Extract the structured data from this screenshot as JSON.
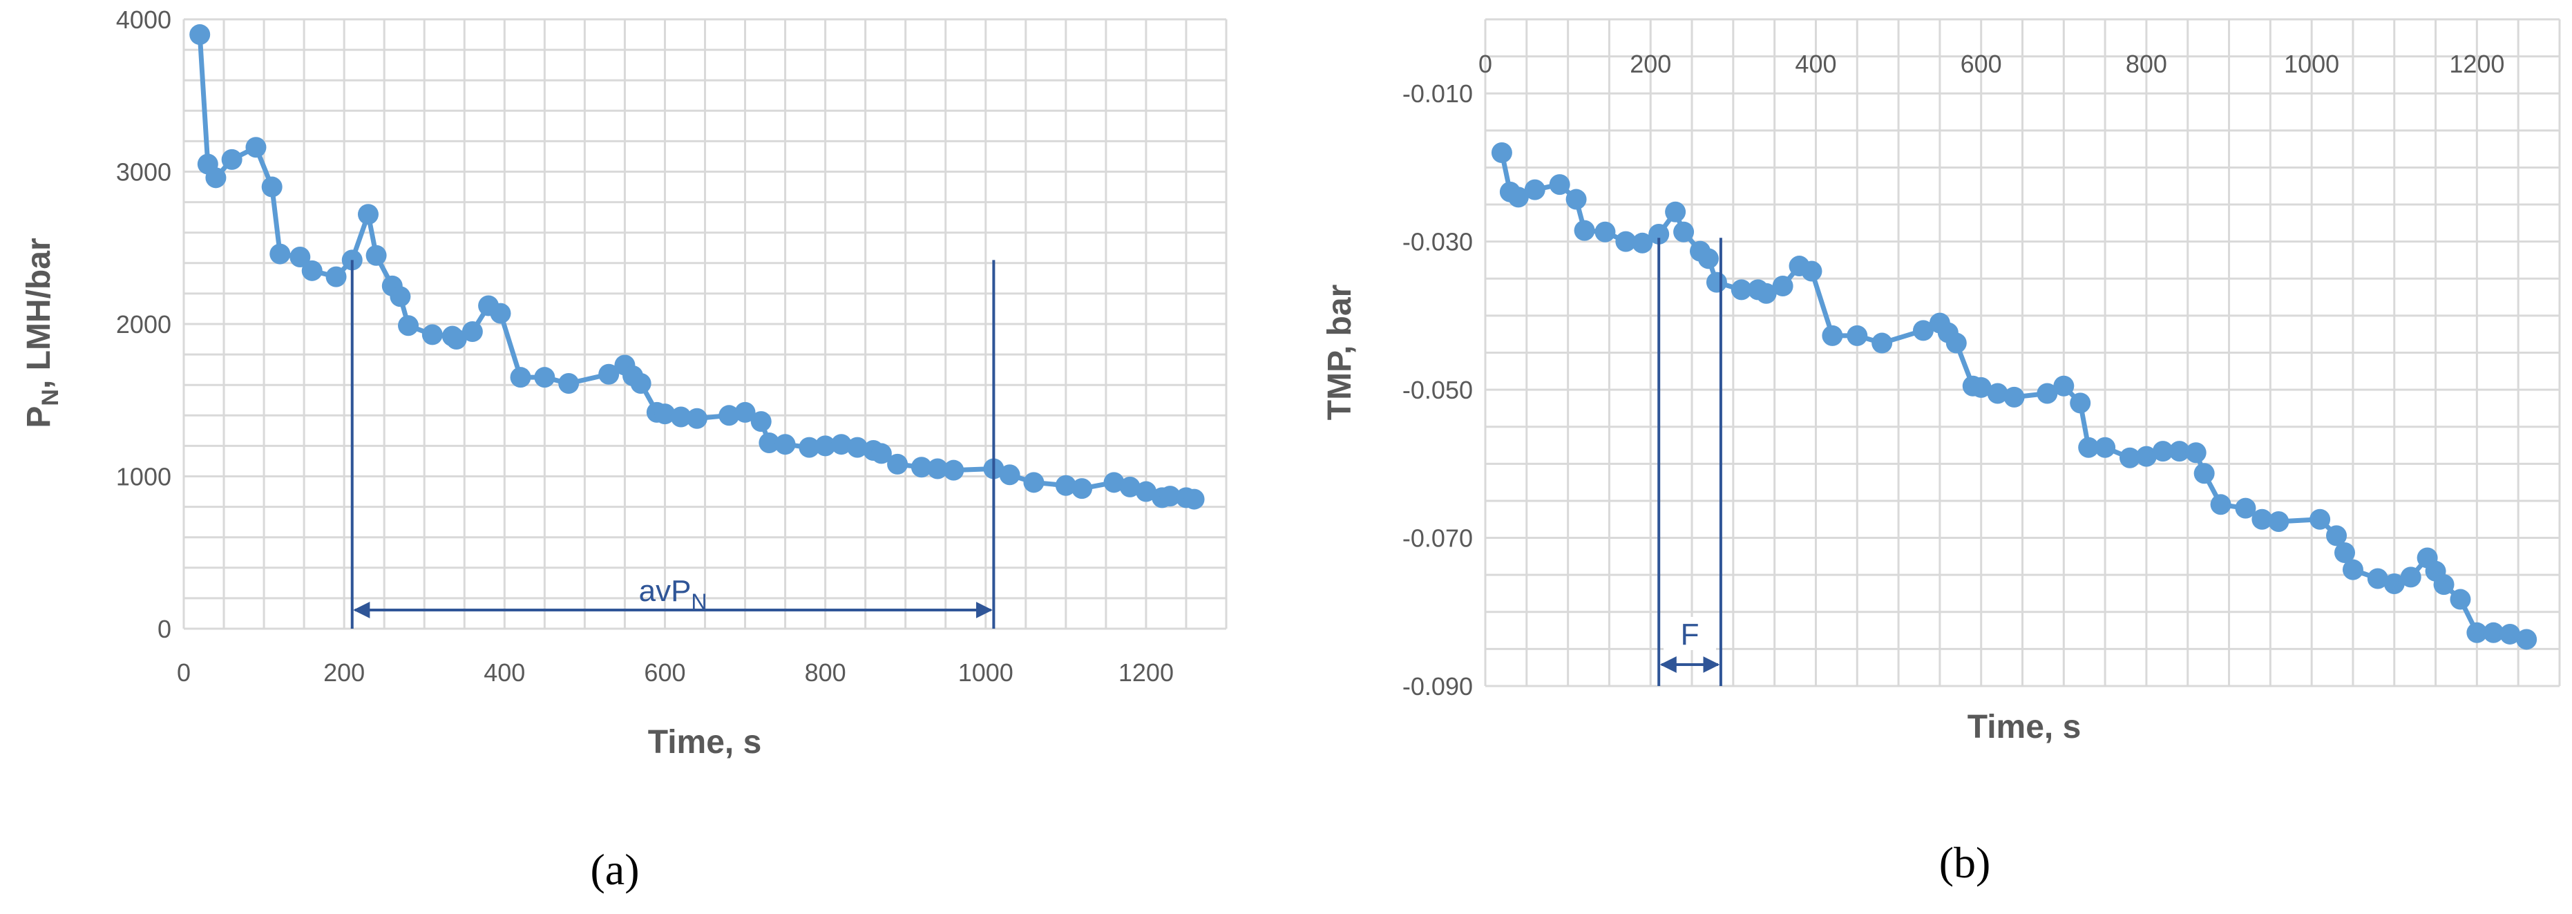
{
  "colors": {
    "series": "#5B9BD5",
    "annotation": "#2F5597",
    "grid": "#D9D9D9",
    "text": "#595959"
  },
  "chart_data": [
    {
      "type": "line",
      "panel_label": "(a)",
      "title": "",
      "xlabel": "Time, s",
      "ylabel": "P",
      "ylabel_sub": "N",
      "ylabel_rest": ", LMH/bar",
      "xlim": [
        0,
        1300
      ],
      "ylim": [
        0,
        4000
      ],
      "xticks": [
        0,
        200,
        400,
        600,
        800,
        1000,
        1200
      ],
      "yticks": [
        0,
        1000,
        2000,
        3000,
        4000
      ],
      "grid": true,
      "legend": "none",
      "series": [
        {
          "markers": true,
          "x": [
            20,
            30,
            40,
            60,
            90,
            110,
            120,
            145,
            160,
            190,
            210,
            230,
            240,
            260,
            270,
            280,
            310,
            335,
            340,
            360,
            380,
            395,
            420,
            450,
            480,
            530,
            550,
            560,
            570,
            590,
            600,
            620,
            640,
            680,
            700,
            720,
            730,
            750,
            780,
            800,
            820,
            840,
            860,
            870,
            890,
            920,
            940,
            960,
            1010,
            1030,
            1060,
            1100,
            1120,
            1160,
            1180,
            1200,
            1220,
            1230,
            1250,
            1260
          ],
          "y": [
            3900,
            3050,
            2960,
            3080,
            3160,
            2900,
            2460,
            2440,
            2350,
            2310,
            2420,
            2720,
            2450,
            2250,
            2180,
            1990,
            1930,
            1920,
            1900,
            1950,
            2120,
            2070,
            1650,
            1650,
            1610,
            1670,
            1730,
            1660,
            1610,
            1420,
            1410,
            1390,
            1380,
            1400,
            1420,
            1360,
            1220,
            1210,
            1190,
            1200,
            1210,
            1190,
            1170,
            1150,
            1080,
            1060,
            1050,
            1040,
            1050,
            1010,
            960,
            940,
            920,
            960,
            930,
            900,
            860,
            870,
            860,
            850
          ]
        }
      ],
      "annotations": {
        "vline_x": [
          210,
          1010
        ],
        "arrow_from": 210,
        "arrow_to": 1010,
        "label_main": "avP",
        "label_sub": "N"
      }
    },
    {
      "type": "line",
      "panel_label": "(b)",
      "title": "",
      "xlabel": "Time, s",
      "ylabel": "TMP, bar",
      "xlim": [
        0,
        1300
      ],
      "ylim": [
        -0.09,
        0
      ],
      "xticks": [
        0,
        200,
        400,
        600,
        800,
        1000,
        1200
      ],
      "yticks": [
        -0.01,
        -0.03,
        -0.05,
        -0.07,
        -0.09
      ],
      "ytick_labels": [
        "-0.010",
        "-0.030",
        "-0.050",
        "-0.070",
        "-0.090"
      ],
      "grid": true,
      "legend": "none",
      "series": [
        {
          "markers": true,
          "x": [
            20,
            30,
            40,
            60,
            90,
            110,
            120,
            145,
            170,
            190,
            210,
            230,
            240,
            260,
            270,
            280,
            310,
            330,
            340,
            360,
            380,
            395,
            420,
            450,
            480,
            530,
            550,
            560,
            570,
            590,
            600,
            620,
            640,
            680,
            700,
            720,
            730,
            750,
            780,
            800,
            820,
            840,
            860,
            870,
            890,
            920,
            940,
            960,
            1010,
            1030,
            1040,
            1050,
            1080,
            1100,
            1120,
            1140,
            1150,
            1160,
            1180,
            1200,
            1220,
            1240,
            1260
          ],
          "y": [
            -0.018,
            -0.0233,
            -0.024,
            -0.023,
            -0.0223,
            -0.0243,
            -0.0285,
            -0.0287,
            -0.03,
            -0.0302,
            -0.029,
            -0.026,
            -0.0287,
            -0.0313,
            -0.0323,
            -0.0355,
            -0.0365,
            -0.0365,
            -0.037,
            -0.036,
            -0.0333,
            -0.034,
            -0.0427,
            -0.0427,
            -0.0437,
            -0.042,
            -0.041,
            -0.0423,
            -0.0437,
            -0.0495,
            -0.0497,
            -0.0505,
            -0.051,
            -0.0505,
            -0.0495,
            -0.0518,
            -0.0578,
            -0.0578,
            -0.0592,
            -0.059,
            -0.0583,
            -0.0583,
            -0.0585,
            -0.0613,
            -0.0655,
            -0.066,
            -0.0675,
            -0.0678,
            -0.0675,
            -0.0697,
            -0.072,
            -0.0743,
            -0.0755,
            -0.0762,
            -0.0753,
            -0.0727,
            -0.0745,
            -0.0763,
            -0.0783,
            -0.0828,
            -0.0828,
            -0.083,
            -0.0837
          ]
        }
      ],
      "annotations": {
        "vline_x": [
          210,
          285
        ],
        "arrow_from": 210,
        "arrow_to": 285,
        "label_main": "F"
      }
    }
  ]
}
